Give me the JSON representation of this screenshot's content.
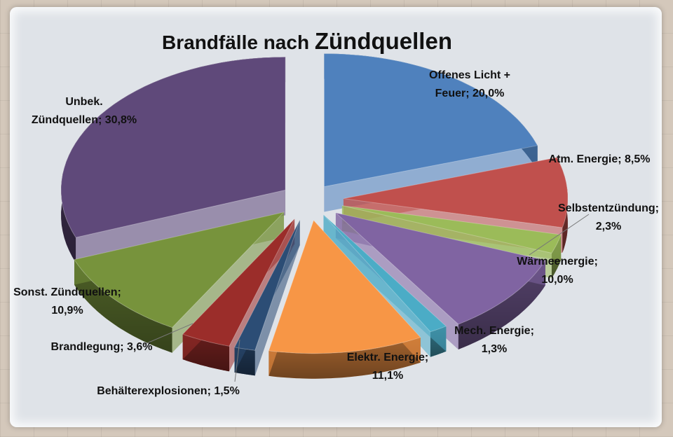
{
  "chart_data": {
    "type": "pie",
    "title": "Brandfälle nach Zündquellen",
    "title_parts": [
      "Brandfälle nach ",
      "Zündquellen"
    ],
    "slices": [
      {
        "name": "Offenes Licht + Feuer",
        "value": 20.0,
        "label": [
          "Offenes Licht +",
          "Feuer; 20,0%"
        ],
        "color": "#4f81bd"
      },
      {
        "name": "Atm. Energie",
        "value": 8.5,
        "label": [
          "Atm. Energie; 8,5%"
        ],
        "color": "#c0504d"
      },
      {
        "name": "Selbstentzündung",
        "value": 2.3,
        "label": [
          "Selbstentzündung;",
          "2,3%"
        ],
        "color": "#9bbb59"
      },
      {
        "name": "Wärmeenergie",
        "value": 10.0,
        "label": [
          "Wärmeenergie;",
          "10,0%"
        ],
        "color": "#8064a2"
      },
      {
        "name": "Mech. Energie",
        "value": 1.3,
        "label": [
          "Mech. Energie;",
          "1,3%"
        ],
        "color": "#4bacc6"
      },
      {
        "name": "Elektr. Energie",
        "value": 11.1,
        "label": [
          "Elektr. Energie;",
          "11,1%"
        ],
        "color": "#f79646"
      },
      {
        "name": "Behälterexplosionen",
        "value": 1.5,
        "label": [
          "Behälterexplosionen; 1,5%"
        ],
        "color": "#2c4d75"
      },
      {
        "name": "Brandlegung",
        "value": 3.6,
        "label": [
          "Brandlegung; 3,6%"
        ],
        "color": "#9b2d2a"
      },
      {
        "name": "Sonst. Zündquellen",
        "value": 10.9,
        "label": [
          "Sonst. Zündquellen;",
          "10,9%"
        ],
        "color": "#77933c"
      },
      {
        "name": "Unbek. Zündquellen",
        "value": 30.8,
        "label": [
          "Unbek.",
          "Zündquellen; 30,8%"
        ],
        "color": "#5f497a"
      }
    ]
  }
}
